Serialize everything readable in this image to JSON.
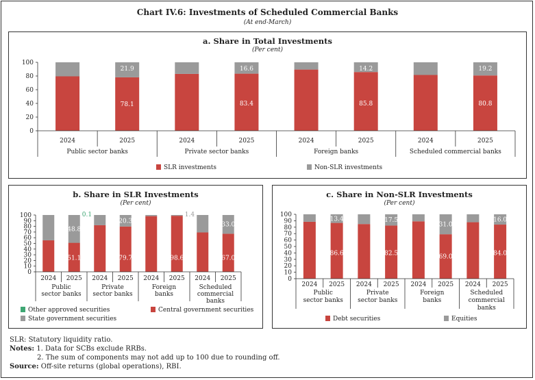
{
  "title": "Chart IV.6: Investments of Scheduled Commercial Banks",
  "subtitle": "(At end-March)",
  "colors": {
    "slr": "#c8453f",
    "nonslr": "#9a9a9a",
    "other": "#3fa774",
    "central": "#c8453f",
    "state": "#9a9a9a",
    "debt": "#c8453f",
    "equities": "#9a9a9a"
  },
  "chart_data": [
    {
      "id": "a",
      "type": "bar",
      "stacked": true,
      "title": "a. Share in Total Investments",
      "subtitle": "(Per cent)",
      "groups": [
        "Public sector banks",
        "Private sector banks",
        "Foreign banks",
        "Scheduled commercial banks"
      ],
      "years": [
        "2024",
        "2025"
      ],
      "ylim": [
        0,
        100
      ],
      "yticks": [
        0,
        20,
        40,
        60,
        80,
        100
      ],
      "legend": "bottom",
      "series": [
        {
          "name": "SLR investments",
          "color": "#c8453f",
          "values": [
            79.5,
            78.1,
            83.1,
            83.4,
            89.4,
            85.8,
            81.5,
            80.8
          ],
          "labels": [
            null,
            "78.1",
            null,
            "83.4",
            null,
            "85.8",
            null,
            "80.8"
          ]
        },
        {
          "name": "Non-SLR investments",
          "color": "#9a9a9a",
          "values": [
            20.5,
            21.9,
            16.9,
            16.6,
            10.6,
            14.2,
            18.5,
            19.2
          ],
          "labels": [
            null,
            "21.9",
            null,
            "16.6",
            null,
            "14.2",
            null,
            "19.2"
          ]
        }
      ]
    },
    {
      "id": "b",
      "type": "bar",
      "stacked": true,
      "title": "b. Share in SLR Investments",
      "subtitle": "(Per cent)",
      "groups": [
        "Public|sector banks",
        "Private|sector banks",
        "Foreign|banks",
        "Scheduled|commercial|banks"
      ],
      "years": [
        "2024",
        "2025"
      ],
      "ylim": [
        0,
        100
      ],
      "yticks": [
        0,
        10,
        20,
        30,
        40,
        50,
        60,
        70,
        80,
        90,
        100
      ],
      "legend": "bottom",
      "series": [
        {
          "name": "Central government securities",
          "color": "#c8453f",
          "values": [
            55.4,
            51.1,
            82.0,
            79.7,
            98.0,
            98.6,
            69.3,
            67.0
          ],
          "labels": [
            null,
            "51.1",
            null,
            "79.7",
            null,
            "98.6",
            null,
            "67.0"
          ]
        },
        {
          "name": "Other approved securities",
          "color": "#3fa774",
          "values": [
            0.1,
            0.1,
            0,
            0,
            0,
            0,
            0,
            0
          ],
          "labels": [
            null,
            "0.1",
            null,
            null,
            null,
            null,
            null,
            null
          ]
        },
        {
          "name": "State government securities",
          "color": "#9a9a9a",
          "values": [
            44.5,
            48.8,
            18.0,
            20.3,
            2.0,
            1.4,
            30.7,
            33.0
          ],
          "labels": [
            null,
            "48.8",
            null,
            "20.3",
            null,
            "1.4",
            null,
            "33.0"
          ]
        }
      ],
      "legend_order": [
        "Other approved securities",
        "Central government securities",
        "State government securities"
      ]
    },
    {
      "id": "c",
      "type": "bar",
      "stacked": true,
      "title": "c. Share in Non-SLR Investments",
      "subtitle": "(Per cent)",
      "groups": [
        "Public|sector banks",
        "Private|sector banks",
        "Foreign|banks",
        "Scheduled|commercial|banks"
      ],
      "years": [
        "2024",
        "2025"
      ],
      "ylim": [
        0,
        100
      ],
      "yticks": [
        0,
        10,
        20,
        30,
        40,
        50,
        60,
        70,
        80,
        90,
        100
      ],
      "legend": "bottom",
      "series": [
        {
          "name": "Debt securities",
          "color": "#c8453f",
          "values": [
            88.4,
            86.6,
            84.9,
            82.5,
            89.1,
            69.0,
            87.7,
            84.0
          ],
          "labels": [
            null,
            "86.6",
            null,
            "82.5",
            null,
            "69.0",
            null,
            "84.0"
          ]
        },
        {
          "name": "Equities",
          "color": "#9a9a9a",
          "values": [
            11.6,
            13.4,
            15.1,
            17.5,
            10.9,
            31.0,
            12.3,
            16.0
          ],
          "labels": [
            null,
            "13.4",
            null,
            "17.5",
            null,
            "31.0",
            null,
            "16.0"
          ]
        }
      ]
    }
  ],
  "notes": {
    "slr": "SLR: Statutory liquidity ratio.",
    "notes_label": "Notes:",
    "note1": "1. Data for SCBs exclude RRBs.",
    "note2": "2. The sum of components may not add up to 100 due to rounding off.",
    "source_label": "Source:",
    "source": "Off-site returns (global operations), RBI."
  }
}
